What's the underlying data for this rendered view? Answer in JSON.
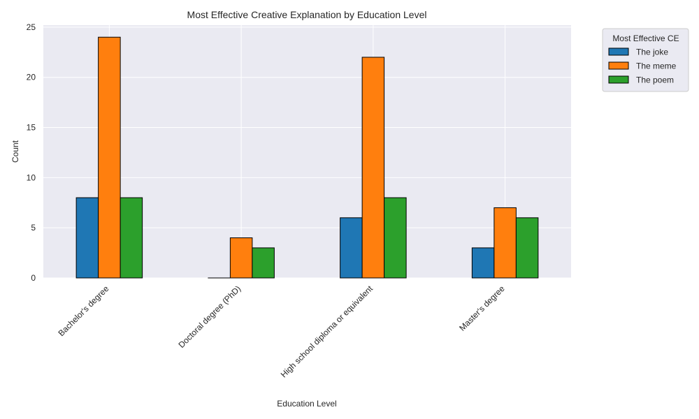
{
  "chart_data": {
    "type": "bar",
    "title": "Most Effective Creative Explanation by Education Level",
    "xlabel": "Education Level",
    "ylabel": "Count",
    "categories": [
      "Bachelor's degree",
      "Doctoral degree (PhD)",
      "High school diploma or equivalent",
      "Master's degree"
    ],
    "series": [
      {
        "name": "The joke",
        "values": [
          8,
          0,
          6,
          3
        ],
        "color": "#1f77b4"
      },
      {
        "name": "The meme",
        "values": [
          24,
          4,
          22,
          7
        ],
        "color": "#ff7f0e"
      },
      {
        "name": "The poem",
        "values": [
          8,
          3,
          8,
          6
        ],
        "color": "#2ca02c"
      }
    ],
    "yticks": [
      0,
      5,
      10,
      15,
      20,
      25
    ],
    "ylim": [
      0,
      25.2
    ],
    "grid": true,
    "legend": {
      "title": "Most Effective CE",
      "position": "outside-right-top"
    },
    "background_color": "#eaeaf2"
  }
}
